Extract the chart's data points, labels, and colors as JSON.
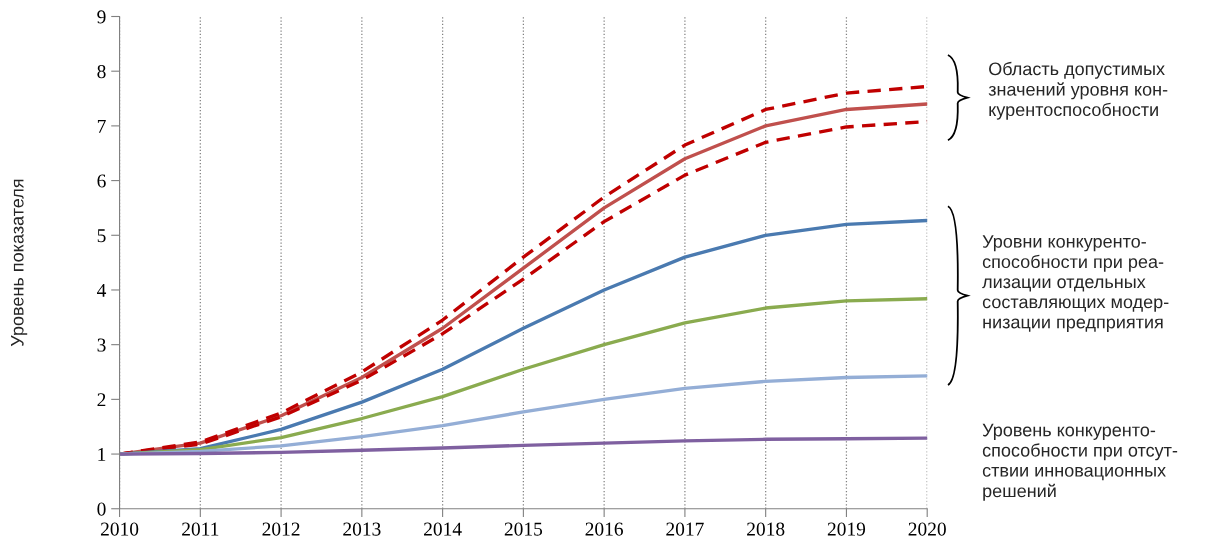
{
  "chart_data": {
    "type": "line",
    "ylabel": "Уровень показателя",
    "x": [
      2010,
      2011,
      2012,
      2013,
      2014,
      2015,
      2016,
      2017,
      2018,
      2019,
      2020
    ],
    "xlim": [
      2010,
      2020
    ],
    "xticks": [
      2010,
      2011,
      2012,
      2013,
      2014,
      2015,
      2016,
      2017,
      2018,
      2019,
      2020
    ],
    "ylim": [
      0,
      9
    ],
    "yticks": [
      0,
      1,
      2,
      3,
      4,
      5,
      6,
      7,
      8,
      9
    ],
    "grid": "x",
    "legend": false,
    "series": [
      {
        "color": "#c0504d",
        "values": [
          1,
          1.2,
          1.7,
          2.4,
          3.3,
          4.4,
          5.5,
          6.4,
          7.0,
          7.3,
          7.4
        ]
      },
      {
        "color": "#c00000",
        "line_style": "dashed",
        "values": [
          1,
          1.22,
          1.75,
          2.5,
          3.45,
          4.6,
          5.7,
          6.65,
          7.3,
          7.6,
          7.72
        ]
      },
      {
        "color": "#c00000",
        "line_style": "dashed",
        "values": [
          1,
          1.18,
          1.68,
          2.35,
          3.2,
          4.2,
          5.25,
          6.1,
          6.7,
          6.98,
          7.08
        ]
      },
      {
        "color": "#4a7ab0",
        "values": [
          1,
          1.1,
          1.45,
          1.95,
          2.55,
          3.3,
          4.0,
          4.6,
          5.0,
          5.2,
          5.27
        ]
      },
      {
        "color": "#8aab4f",
        "values": [
          1,
          1.08,
          1.3,
          1.65,
          2.05,
          2.55,
          3.0,
          3.4,
          3.67,
          3.8,
          3.84
        ]
      },
      {
        "color": "#94aed6",
        "values": [
          1,
          1.05,
          1.15,
          1.32,
          1.52,
          1.77,
          2.0,
          2.2,
          2.33,
          2.4,
          2.43
        ]
      },
      {
        "color": "#7f60a0",
        "values": [
          1,
          1.01,
          1.03,
          1.07,
          1.11,
          1.16,
          1.2,
          1.24,
          1.27,
          1.28,
          1.29
        ]
      }
    ],
    "annotations": [
      "Область допустимых\nзначений уровня кон-\nкурентоспособности",
      "Уровни конкуренто-\nспособности при реа-\nлизации отдельных\nсоставляющих модер-\nнизации предприятия",
      "Уровень конкуренто-\nспособности при отсут-\nствии инновационных\nрешений"
    ]
  }
}
